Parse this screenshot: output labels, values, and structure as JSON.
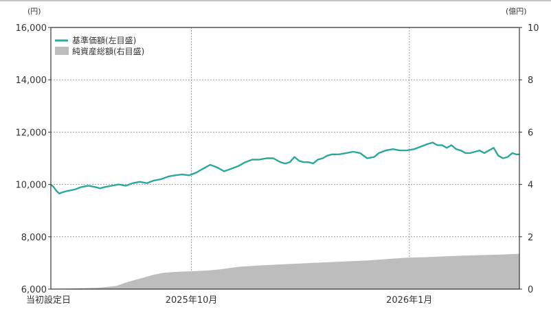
{
  "chart_data": {
    "type": "line",
    "title": "",
    "y_left": {
      "unit": "(円)",
      "ylim": [
        6000,
        16000
      ],
      "ticks": [
        6000,
        8000,
        10000,
        12000,
        14000,
        16000
      ],
      "tick_labels": [
        "6,000",
        "8,000",
        "10,000",
        "12,000",
        "14,000",
        "16,000"
      ]
    },
    "y_right": {
      "unit": "(億円)",
      "ylim": [
        0,
        10
      ],
      "ticks": [
        0,
        2,
        4,
        6,
        8,
        10
      ],
      "tick_labels": [
        "0",
        "2",
        "4",
        "6",
        "8",
        "10"
      ]
    },
    "x_labels": [
      {
        "text": "当初設定日",
        "t": 0.0
      },
      {
        "text": "2025年10月",
        "t": 0.3
      },
      {
        "text": "2026年1月",
        "t": 0.765
      }
    ],
    "grid": true,
    "legend_position": "top-left",
    "series": [
      {
        "name": "基準価額(左目盛)",
        "type": "line",
        "axis": "left",
        "color": "#2aa89a",
        "x": [
          0,
          0.006,
          0.012,
          0.018,
          0.025,
          0.035,
          0.05,
          0.065,
          0.08,
          0.095,
          0.105,
          0.115,
          0.13,
          0.145,
          0.16,
          0.175,
          0.19,
          0.205,
          0.22,
          0.235,
          0.25,
          0.265,
          0.28,
          0.295,
          0.31,
          0.325,
          0.34,
          0.355,
          0.37,
          0.385,
          0.4,
          0.415,
          0.43,
          0.445,
          0.46,
          0.475,
          0.49,
          0.5,
          0.51,
          0.52,
          0.53,
          0.54,
          0.55,
          0.56,
          0.57,
          0.58,
          0.59,
          0.6,
          0.615,
          0.63,
          0.645,
          0.66,
          0.675,
          0.69,
          0.7,
          0.715,
          0.73,
          0.745,
          0.76,
          0.775,
          0.79,
          0.805,
          0.815,
          0.825,
          0.835,
          0.845,
          0.855,
          0.865,
          0.875,
          0.885,
          0.895,
          0.905,
          0.915,
          0.925,
          0.935,
          0.945,
          0.955,
          0.965,
          0.975,
          0.985,
          0.993,
          1.0
        ],
        "values": [
          10000,
          9900,
          9750,
          9650,
          9700,
          9750,
          9800,
          9900,
          9950,
          9900,
          9850,
          9900,
          9950,
          10000,
          9950,
          10050,
          10100,
          10050,
          10150,
          10200,
          10300,
          10350,
          10380,
          10350,
          10450,
          10600,
          10750,
          10650,
          10500,
          10600,
          10700,
          10850,
          10950,
          10950,
          11000,
          11000,
          10850,
          10800,
          10850,
          11050,
          10900,
          10850,
          10850,
          10800,
          10950,
          11000,
          11100,
          11150,
          11150,
          11200,
          11250,
          11200,
          11000,
          11050,
          11200,
          11300,
          11350,
          11300,
          11300,
          11350,
          11450,
          11550,
          11600,
          11500,
          11500,
          11400,
          11500,
          11350,
          11300,
          11200,
          11200,
          11250,
          11300,
          11200,
          11300,
          11400,
          11100,
          11000,
          11050,
          11200,
          11150,
          11150
        ]
      },
      {
        "name": "純資産総額(右目盛)",
        "type": "area",
        "axis": "right",
        "color": "#bdbdbd",
        "x": [
          0,
          0.1,
          0.14,
          0.16,
          0.18,
          0.2,
          0.22,
          0.24,
          0.26,
          0.28,
          0.3,
          0.32,
          0.34,
          0.36,
          0.38,
          0.4,
          0.44,
          0.5,
          0.56,
          0.62,
          0.68,
          0.72,
          0.76,
          0.8,
          0.84,
          0.88,
          0.92,
          0.96,
          1.0
        ],
        "values": [
          0,
          0.05,
          0.12,
          0.25,
          0.35,
          0.45,
          0.55,
          0.62,
          0.65,
          0.67,
          0.68,
          0.7,
          0.72,
          0.75,
          0.8,
          0.85,
          0.9,
          0.95,
          1.0,
          1.05,
          1.1,
          1.15,
          1.2,
          1.22,
          1.25,
          1.28,
          1.3,
          1.32,
          1.35
        ]
      }
    ]
  }
}
